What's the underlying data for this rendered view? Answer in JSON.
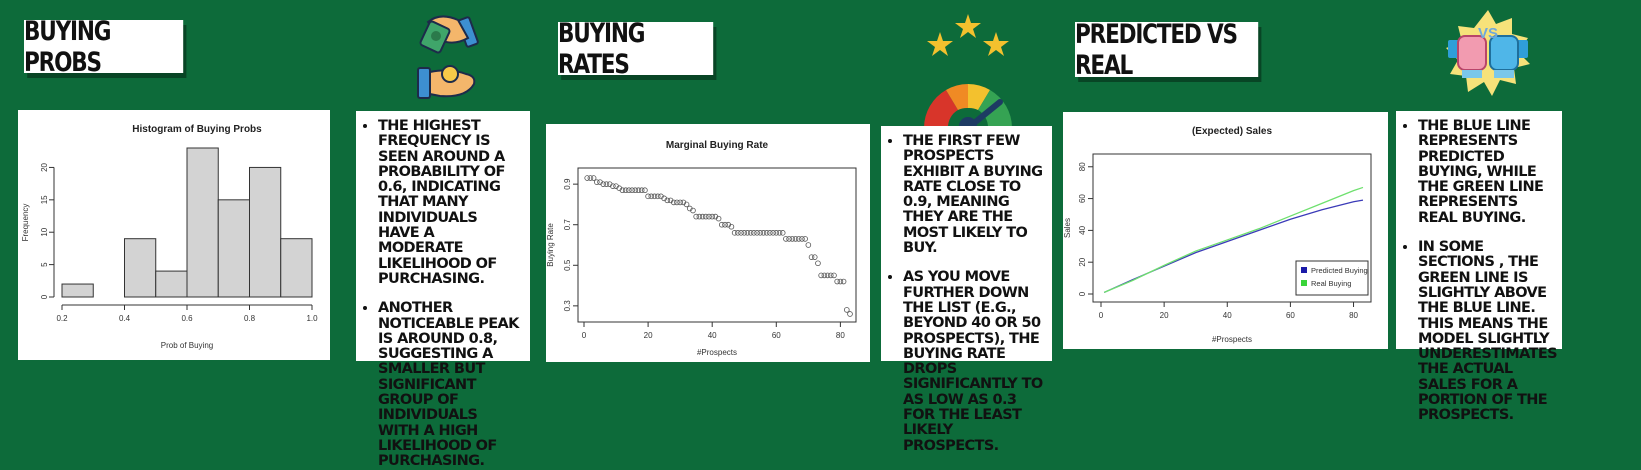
{
  "headings": {
    "buying_probs": "BUYING PROBS",
    "buying_rates": "BUYING RATES",
    "predicted_vs_real": "PREDICTED VS REAL"
  },
  "notes": {
    "probs": [
      "THE HIGHEST FREQUENCY IS SEEN AROUND A PROBABILITY OF 0.6, INDICATING THAT MANY INDIVIDUALS HAVE A MODERATE LIKELIHOOD OF PURCHASING.",
      "ANOTHER NOTICEABLE PEAK IS AROUND 0.8, SUGGESTING A SMALLER BUT SIGNIFICANT GROUP OF INDIVIDUALS WITH A HIGH LIKELIHOOD OF PURCHASING."
    ],
    "rates": [
      "THE FIRST FEW PROSPECTS EXHIBIT A BUYING RATE CLOSE TO 0.9, MEANING THEY ARE THE MOST LIKELY TO BUY.",
      "AS YOU MOVE FURTHER DOWN THE LIST (E.G., BEYOND 40 OR 50 PROSPECTS), THE BUYING RATE DROPS SIGNIFICANTLY TO AS LOW AS 0.3 FOR THE LEAST LIKELY PROSPECTS."
    ],
    "sales": [
      "THE BLUE LINE REPRESENTS PREDICTED BUYING, WHILE THE GREEN LINE REPRESENTS REAL BUYING.",
      "IN SOME SECTIONS , THE GREEN LINE IS SLIGHTLY ABOVE THE BLUE LINE. THIS MEANS THE MODEL SLIGHTLY UNDERESTIMATES THE ACTUAL SALES FOR A PORTION OF THE PROSPECTS."
    ]
  },
  "icons": {
    "handshake": "money-handshake-icon",
    "gauge": "rating-gauge-icon",
    "versus": "vs-boxing-icon"
  },
  "colors": {
    "background": "#0d6b3a",
    "predicted_line": "#3b3bb8",
    "real_line": "#6ee06e",
    "bar_fill": "#d3d3d3"
  },
  "chart_data": [
    {
      "type": "bar",
      "title": "Histogram of Buying Probs",
      "xlabel": "Prob of Buying",
      "ylabel": "Frequency",
      "bins": [
        [
          0.2,
          0.3
        ],
        [
          0.3,
          0.4
        ],
        [
          0.4,
          0.5
        ],
        [
          0.5,
          0.6
        ],
        [
          0.6,
          0.7
        ],
        [
          0.7,
          0.8
        ],
        [
          0.8,
          0.9
        ],
        [
          0.9,
          1.0
        ]
      ],
      "values": [
        2,
        0,
        9,
        4,
        23,
        15,
        20,
        9
      ],
      "xticks": [
        "0.2",
        "0.4",
        "0.6",
        "0.8",
        "1.0"
      ],
      "yticks": [
        "0",
        "5",
        "10",
        "15",
        "20"
      ],
      "xlim": [
        0.2,
        1.0
      ],
      "ylim": [
        0,
        23
      ]
    },
    {
      "type": "scatter",
      "title": "Marginal Buying Rate",
      "xlabel": "#Prospects",
      "ylabel": "Buying Rate",
      "x": [
        1,
        2,
        3,
        4,
        5,
        6,
        7,
        8,
        9,
        10,
        11,
        12,
        13,
        14,
        15,
        16,
        17,
        18,
        19,
        20,
        21,
        22,
        23,
        24,
        25,
        26,
        27,
        28,
        29,
        30,
        31,
        32,
        33,
        34,
        35,
        36,
        37,
        38,
        39,
        40,
        41,
        42,
        43,
        44,
        45,
        46,
        47,
        48,
        49,
        50,
        51,
        52,
        53,
        54,
        55,
        56,
        57,
        58,
        59,
        60,
        61,
        62,
        63,
        64,
        65,
        66,
        67,
        68,
        69,
        70,
        71,
        72,
        73,
        74,
        75,
        76,
        77,
        78,
        79,
        80,
        81,
        82,
        83
      ],
      "y": [
        0.93,
        0.93,
        0.93,
        0.91,
        0.91,
        0.9,
        0.9,
        0.9,
        0.89,
        0.89,
        0.88,
        0.87,
        0.87,
        0.87,
        0.87,
        0.87,
        0.87,
        0.87,
        0.87,
        0.84,
        0.84,
        0.84,
        0.84,
        0.84,
        0.83,
        0.82,
        0.82,
        0.81,
        0.81,
        0.81,
        0.81,
        0.8,
        0.78,
        0.77,
        0.74,
        0.74,
        0.74,
        0.74,
        0.74,
        0.74,
        0.74,
        0.73,
        0.7,
        0.7,
        0.7,
        0.69,
        0.66,
        0.66,
        0.66,
        0.66,
        0.66,
        0.66,
        0.66,
        0.66,
        0.66,
        0.66,
        0.66,
        0.66,
        0.66,
        0.66,
        0.66,
        0.66,
        0.63,
        0.63,
        0.63,
        0.63,
        0.63,
        0.63,
        0.63,
        0.6,
        0.54,
        0.54,
        0.51,
        0.45,
        0.45,
        0.45,
        0.45,
        0.45,
        0.42,
        0.42,
        0.42,
        0.28,
        0.26
      ],
      "xticks": [
        "0",
        "20",
        "40",
        "60",
        "80"
      ],
      "yticks": [
        "0.3",
        "0.5",
        "0.7",
        "0.9"
      ],
      "xlim": [
        0,
        83
      ],
      "ylim": [
        0.25,
        0.95
      ]
    },
    {
      "type": "line",
      "title": "(Expected) Sales",
      "xlabel": "#Prospects",
      "ylabel": "Sales",
      "x": [
        1,
        10,
        20,
        30,
        40,
        50,
        60,
        70,
        80,
        83
      ],
      "series": [
        {
          "name": "Predicted Buying",
          "values": [
            1,
            9,
            17.5,
            26,
            33,
            40,
            47,
            53,
            58,
            59
          ]
        },
        {
          "name": "Real Buying",
          "values": [
            1,
            8.5,
            18,
            27,
            34,
            41,
            49,
            57,
            65,
            67
          ]
        }
      ],
      "xticks": [
        "0",
        "20",
        "40",
        "60",
        "80"
      ],
      "yticks": [
        "0",
        "20",
        "40",
        "60",
        "80"
      ],
      "xlim": [
        0,
        83
      ],
      "ylim": [
        0,
        83
      ],
      "legend": "bottom-right"
    }
  ]
}
